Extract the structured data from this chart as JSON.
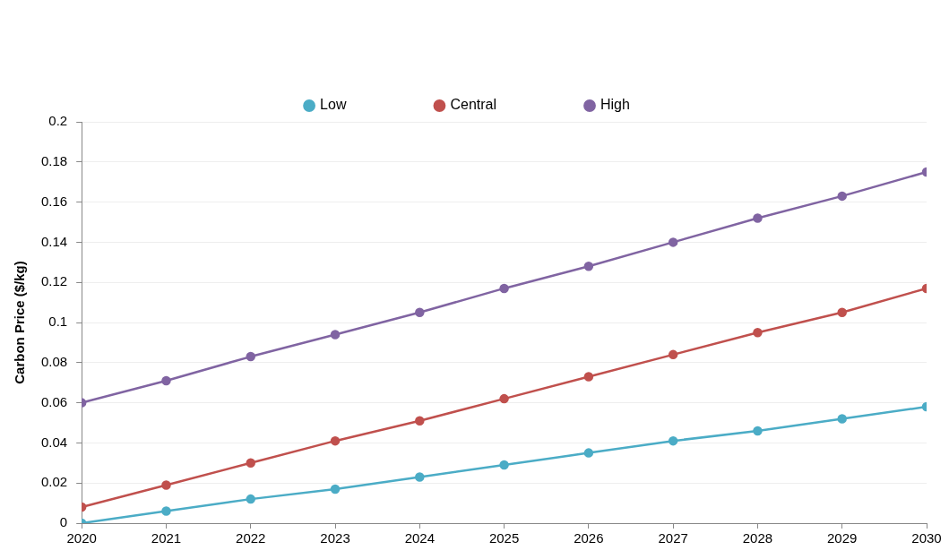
{
  "chart_data": {
    "type": "line",
    "ylabel": "Carbon Price ($/kg)",
    "x": [
      2020,
      2021,
      2022,
      2023,
      2024,
      2025,
      2026,
      2027,
      2028,
      2029,
      2030
    ],
    "series": [
      {
        "name": "Low",
        "color": "#4bacc6",
        "values": [
          0,
          0.006,
          0.012,
          0.017,
          0.023,
          0.029,
          0.035,
          0.041,
          0.046,
          0.052,
          0.058
        ]
      },
      {
        "name": "Central",
        "color": "#c0504d",
        "values": [
          0.008,
          0.019,
          0.03,
          0.041,
          0.051,
          0.062,
          0.073,
          0.084,
          0.095,
          0.105,
          0.117
        ]
      },
      {
        "name": "High",
        "color": "#8064a2",
        "values": [
          0.06,
          0.071,
          0.083,
          0.094,
          0.105,
          0.117,
          0.128,
          0.14,
          0.152,
          0.163,
          0.175
        ]
      }
    ],
    "xlim": [
      2020,
      2030
    ],
    "xticks": [
      2020,
      2021,
      2022,
      2023,
      2024,
      2025,
      2026,
      2027,
      2028,
      2029,
      2030
    ],
    "ylim": [
      0,
      0.2
    ],
    "yticks": [
      0,
      0.02,
      0.04,
      0.06,
      0.08,
      0.1,
      0.12,
      0.14,
      0.16,
      0.18,
      0.2
    ],
    "grid": "y",
    "legend": "top",
    "marker": "circle",
    "line_style": "solid"
  }
}
